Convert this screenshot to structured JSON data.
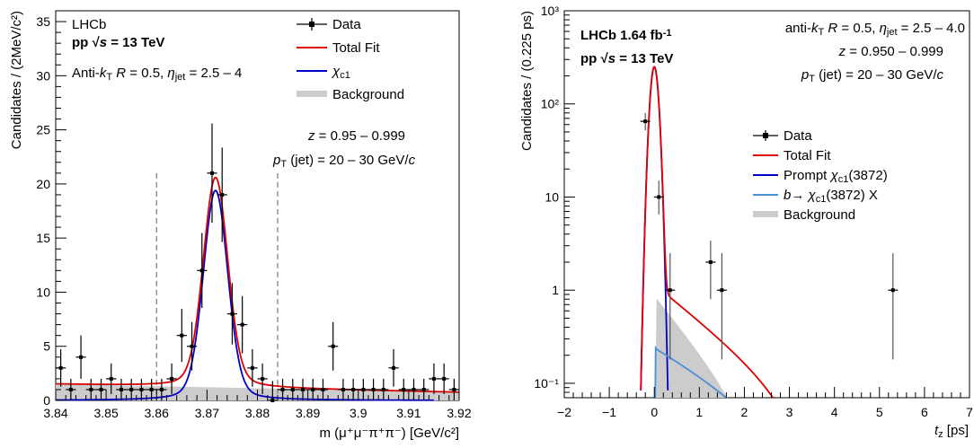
{
  "chart_data": [
    {
      "type": "scatter",
      "ylabel": "Candidates / (2MeV/c²)",
      "xlabel_main": "m (μ⁺μ⁻π⁺π⁻)",
      "xlabel_unit": "[GeV/c²]",
      "xlim": [
        3.84,
        3.92
      ],
      "ylim": [
        0,
        36
      ],
      "x_ticks": [
        "3.84",
        "3.85",
        "3.86",
        "3.87",
        "3.88",
        "3.89",
        "3.9",
        "3.91",
        "3.92"
      ],
      "y_ticks": [
        "0",
        "5",
        "10",
        "15",
        "20",
        "25",
        "30",
        "35"
      ],
      "annotations": {
        "experiment": "LHCb",
        "collision": "pp",
        "energy": "√s = 13 TeV",
        "jet_algo": "Anti-k_T  R = 0.5, η_jet = 2.5 – 4",
        "z_range": "z = 0.95 – 0.999",
        "pt_range": "p_T (jet) = 20 – 30 GeV/c"
      },
      "legend": [
        "Data",
        "Total Fit",
        "χc1",
        "Background"
      ],
      "signal_window": [
        3.86,
        3.884
      ],
      "fit": {
        "mean": 3.8717,
        "sigma": 0.0024,
        "gamma": 0.0033,
        "signal_peak": 19.4,
        "bkg_at_lo": 1.5,
        "bkg_at_hi": 0.75
      },
      "series": [
        {
          "name": "Data",
          "x": [
            3.841,
            3.843,
            3.845,
            3.847,
            3.849,
            3.851,
            3.853,
            3.855,
            3.857,
            3.859,
            3.861,
            3.863,
            3.865,
            3.867,
            3.869,
            3.871,
            3.873,
            3.875,
            3.877,
            3.879,
            3.881,
            3.883,
            3.885,
            3.887,
            3.889,
            3.891,
            3.893,
            3.895,
            3.897,
            3.899,
            3.901,
            3.903,
            3.905,
            3.907,
            3.909,
            3.911,
            3.913,
            3.915,
            3.917,
            3.919
          ],
          "y": [
            3,
            1,
            4,
            1,
            1,
            2,
            1,
            1,
            1,
            1,
            1,
            2,
            6,
            5,
            12,
            21,
            19,
            8,
            7,
            3,
            2,
            0,
            1,
            1,
            1,
            1,
            1,
            5,
            1,
            1,
            1,
            1,
            1,
            3,
            1,
            1,
            1,
            2,
            2,
            1
          ]
        }
      ]
    },
    {
      "type": "scatter",
      "ylabel": "Candidates / (0.225 ps)",
      "xlabel_main": "t_z",
      "xlabel_unit": "[ps]",
      "xlim": [
        -2,
        7
      ],
      "yscale": "log",
      "ylim": [
        0.07,
        1000
      ],
      "x_ticks": [
        "−2",
        "−1",
        "0",
        "1",
        "2",
        "3",
        "4",
        "5",
        "6",
        "7"
      ],
      "y_ticks": [
        "10⁻¹",
        "1",
        "10",
        "10²",
        "10³"
      ],
      "annotations": {
        "experiment": "LHCb 1.64 fb⁻¹",
        "collision": "pp",
        "energy": "√s = 13 TeV",
        "jet_algo": "anti-k_T  R = 0.5, η_jet = 2.5 – 4.0",
        "z_range": "z = 0.950 – 0.999",
        "pt_range": "p_T (jet) = 20 – 30 GeV/c"
      },
      "legend": [
        "Data",
        "Total Fit",
        "Prompt χc1(3872)",
        "b → χc1(3872) X",
        "Background"
      ],
      "series": [
        {
          "name": "Data",
          "x": [
            -0.2,
            0.1,
            0.35,
            1.25,
            1.5,
            5.3
          ],
          "y": [
            65,
            10,
            1,
            2,
            1,
            1
          ]
        }
      ]
    }
  ]
}
